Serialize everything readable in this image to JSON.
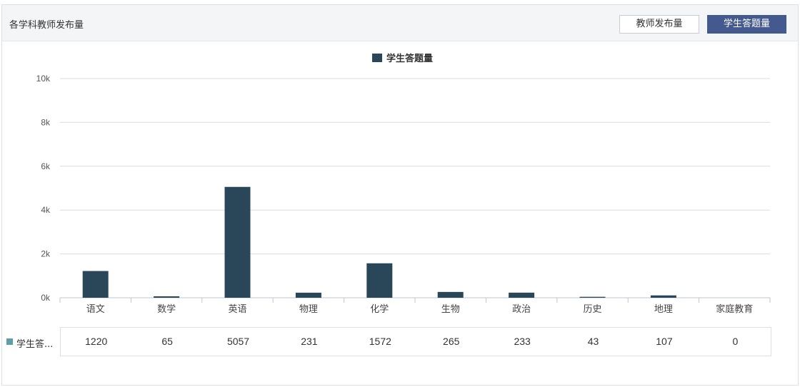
{
  "panel": {
    "title": "各学科教师发布量"
  },
  "tabs": {
    "teacher_label": "教师发布量",
    "student_label": "学生答题量"
  },
  "colors": {
    "bar": "#294759",
    "tab_active": "#44598e",
    "table_swatch": "#5f9ea8",
    "grid": "#dcdcdc"
  },
  "table": {
    "series_label": "学生答题量",
    "series_label_display": "学生答..."
  },
  "chart_data": {
    "type": "bar",
    "categories": [
      "语文",
      "数学",
      "英语",
      "物理",
      "化学",
      "生物",
      "政治",
      "历史",
      "地理",
      "家庭教育"
    ],
    "series": [
      {
        "name": "学生答题量",
        "values": [
          1220,
          65,
          5057,
          231,
          1572,
          265,
          233,
          43,
          107,
          0
        ]
      }
    ],
    "ylim": [
      0,
      10000
    ],
    "yticks": [
      "0k",
      "2k",
      "4k",
      "6k",
      "8k",
      "10k"
    ],
    "grid": true,
    "legend": "top-center"
  }
}
